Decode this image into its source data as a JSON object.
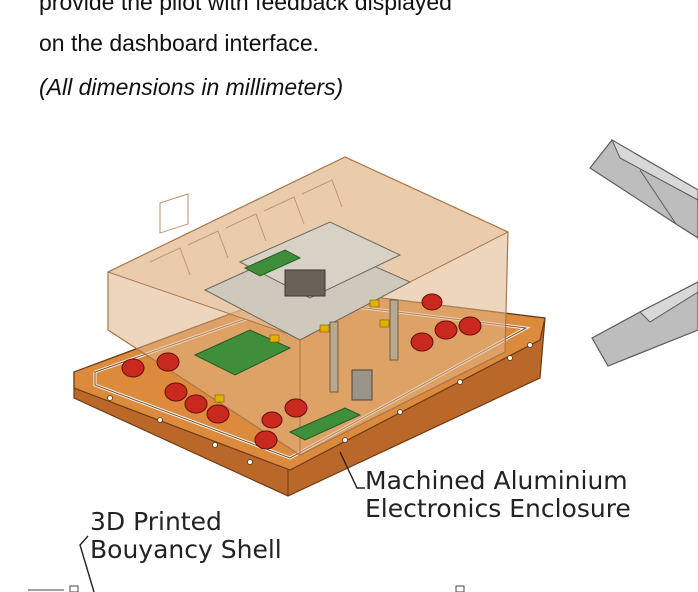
{
  "text": {
    "line1": "provide the pilot with feedback displayed",
    "line2": "on the dashboard interface.",
    "note": "(All dimensions in millimeters)"
  },
  "callouts": {
    "enclosure_line1": "Machined Aluminium",
    "enclosure_line2": "Electronics Enclosure",
    "shell_line1": "3D Printed",
    "shell_line2": "Bouyancy Shell"
  },
  "colors": {
    "enclosure_orange": "#d8873a",
    "shell_tan": "#e0b488",
    "standoff_red": "#c8281e",
    "pcb_green": "#3f8f3a",
    "bracket_gray": "#b8b8b8"
  }
}
